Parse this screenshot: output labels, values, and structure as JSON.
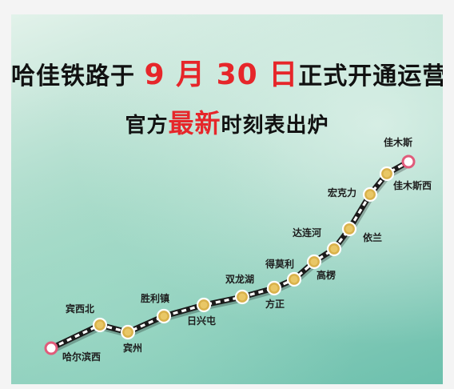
{
  "headline": {
    "part1": "哈佳铁路于 ",
    "month_num": "9",
    "month_unit": " 月 ",
    "day_num": "30",
    "day_unit": " 日",
    "part2": "正式开通运营"
  },
  "subheadline": {
    "part1": "官方",
    "highlight": "最新",
    "part2": "时刻表出炉"
  },
  "colors": {
    "highlight": "#e6262a",
    "terminal": "#e05b7a",
    "station": "#d9b14a"
  },
  "route": {
    "stations": [
      {
        "name": "哈尔滨西",
        "type": "terminal"
      },
      {
        "name": "宾西北",
        "type": "station"
      },
      {
        "name": "宾州",
        "type": "station"
      },
      {
        "name": "胜利镇",
        "type": "station"
      },
      {
        "name": "日兴屯",
        "type": "station"
      },
      {
        "name": "双龙湖",
        "type": "station"
      },
      {
        "name": "方正",
        "type": "station"
      },
      {
        "name": "得莫利",
        "type": "station"
      },
      {
        "name": "高楞",
        "type": "station"
      },
      {
        "name": "达连河",
        "type": "station"
      },
      {
        "name": "依兰",
        "type": "station"
      },
      {
        "name": "宏克力",
        "type": "station"
      },
      {
        "name": "佳木斯西",
        "type": "station"
      },
      {
        "name": "佳木斯",
        "type": "terminal"
      }
    ]
  }
}
